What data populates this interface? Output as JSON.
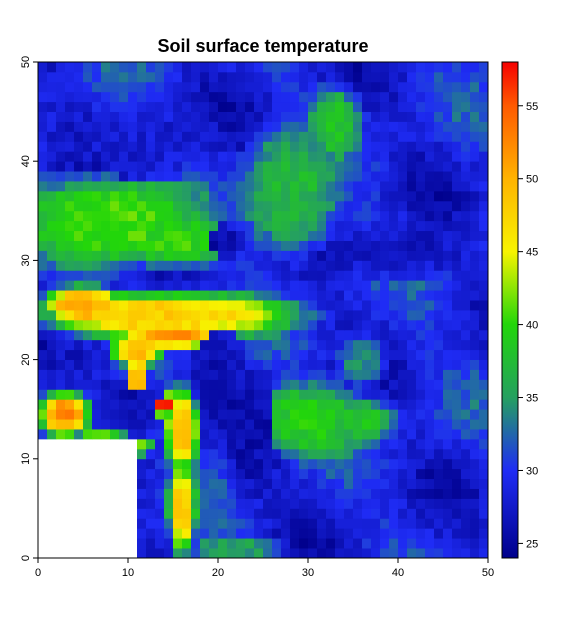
{
  "chart_data": {
    "type": "heatmap",
    "title": "Soil surface temperature",
    "xlabel": "",
    "ylabel": "",
    "xlim": [
      0,
      50
    ],
    "ylim": [
      0,
      50
    ],
    "x_ticks": [
      "0",
      "10",
      "20",
      "30",
      "40",
      "50"
    ],
    "y_ticks": [
      "0",
      "10",
      "20",
      "30",
      "40",
      "50"
    ],
    "grid": 50,
    "colorbar": {
      "range": [
        24,
        58
      ],
      "ticks": [
        "25",
        "30",
        "35",
        "40",
        "45",
        "50",
        "55"
      ],
      "stops": [
        {
          "v": 24,
          "c": "#00008b"
        },
        {
          "v": 30,
          "c": "#1f2cf5"
        },
        {
          "v": 35,
          "c": "#25a060"
        },
        {
          "v": 40,
          "c": "#22d60a"
        },
        {
          "v": 45,
          "c": "#f7f300"
        },
        {
          "v": 50,
          "c": "#ffb300"
        },
        {
          "v": 55,
          "c": "#ff5a00"
        },
        {
          "v": 58,
          "c": "#f50000"
        }
      ]
    },
    "missing_region": {
      "x": [
        0,
        11
      ],
      "y": [
        0,
        12
      ]
    },
    "regions": [
      {
        "cx": 8,
        "cy": 34,
        "rx": 11,
        "ry": 5,
        "v": 41
      },
      {
        "cx": 15,
        "cy": 32,
        "rx": 8,
        "ry": 3,
        "v": 40
      },
      {
        "cx": 14,
        "cy": 24.5,
        "rx": 15,
        "ry": 2.6,
        "v": 48
      },
      {
        "cx": 5,
        "cy": 25.5,
        "rx": 5,
        "ry": 2,
        "v": 51
      },
      {
        "cx": 15,
        "cy": 22.5,
        "rx": 6,
        "ry": 1.5,
        "v": 52
      },
      {
        "cx": 11,
        "cy": 21,
        "rx": 3,
        "ry": 1.5,
        "v": 50
      },
      {
        "cx": 16,
        "cy": 13,
        "rx": 2,
        "ry": 4.5,
        "v": 49
      },
      {
        "cx": 14,
        "cy": 15.5,
        "rx": 1.3,
        "ry": 1.3,
        "v": 57
      },
      {
        "cx": 16,
        "cy": 5,
        "rx": 1.6,
        "ry": 5,
        "v": 48
      },
      {
        "cx": 3,
        "cy": 14.5,
        "rx": 3,
        "ry": 2.5,
        "v": 52
      },
      {
        "cx": 7,
        "cy": 12.3,
        "rx": 3,
        "ry": 0.8,
        "v": 42
      },
      {
        "cx": 11,
        "cy": 11.2,
        "rx": 2,
        "ry": 0.8,
        "v": 44
      },
      {
        "cx": 11,
        "cy": 18,
        "rx": 1,
        "ry": 3,
        "v": 52
      },
      {
        "cx": 30,
        "cy": 14,
        "rx": 7,
        "ry": 4,
        "v": 39
      },
      {
        "cx": 36,
        "cy": 14,
        "rx": 4,
        "ry": 2.5,
        "v": 38
      },
      {
        "cx": 28,
        "cy": 37,
        "rx": 6,
        "ry": 7,
        "v": 37
      },
      {
        "cx": 33,
        "cy": 44,
        "rx": 3,
        "ry": 4,
        "v": 38
      },
      {
        "cx": 36,
        "cy": 20,
        "rx": 3,
        "ry": 3,
        "v": 34
      },
      {
        "cx": 22,
        "cy": 1,
        "rx": 6,
        "ry": 1,
        "v": 36
      },
      {
        "cx": 20,
        "cy": 19,
        "rx": 3,
        "ry": 5,
        "v": 26
      },
      {
        "cx": 11,
        "cy": 16,
        "rx": 3,
        "ry": 3,
        "v": 26
      },
      {
        "cx": 8,
        "cy": 16,
        "rx": 2,
        "ry": 3,
        "v": 27
      },
      {
        "cx": 5,
        "cy": 20,
        "rx": 4,
        "ry": 2,
        "v": 27
      },
      {
        "cx": 24,
        "cy": 12,
        "rx": 3,
        "ry": 7,
        "v": 26
      },
      {
        "cx": 40,
        "cy": 31,
        "rx": 8,
        "ry": 3,
        "v": 27
      },
      {
        "cx": 20,
        "cy": 32,
        "rx": 3,
        "ry": 2,
        "v": 26
      },
      {
        "cx": 12,
        "cy": 42,
        "rx": 10,
        "ry": 4,
        "v": 28
      }
    ]
  }
}
